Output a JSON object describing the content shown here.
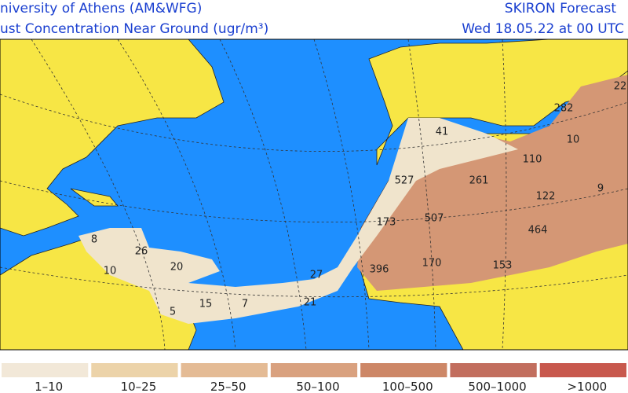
{
  "header": {
    "left_lines": [
      "niversity of Athens (AM&WFG)",
      "ust Concentration Near Ground (ugr/m³)"
    ],
    "right_lines": [
      "SKIRON Forecast",
      "Wed 18.05.22 at 00 UTC"
    ]
  },
  "map": {
    "labels": [
      "8",
      "26",
      "20",
      "10",
      "15",
      "7",
      "5",
      "27",
      "21",
      "396",
      "170",
      "153",
      "464",
      "507",
      "173",
      "122",
      "261",
      "527",
      "110",
      "282",
      "22",
      "10",
      "9",
      "41"
    ]
  },
  "legend": {
    "items": [
      {
        "label": "1–10",
        "color": "#f2e8d8"
      },
      {
        "label": "10–25",
        "color": "#ecd3a9"
      },
      {
        "label": "25–50",
        "color": "#e4bb95"
      },
      {
        "label": "50–100",
        "color": "#d9a17f"
      },
      {
        "label": "100–500",
        "color": "#cd8767"
      },
      {
        "label": "500–1000",
        "color": "#c26e5e"
      },
      {
        "label": ">1000",
        "color": "#c8584d"
      }
    ]
  }
}
